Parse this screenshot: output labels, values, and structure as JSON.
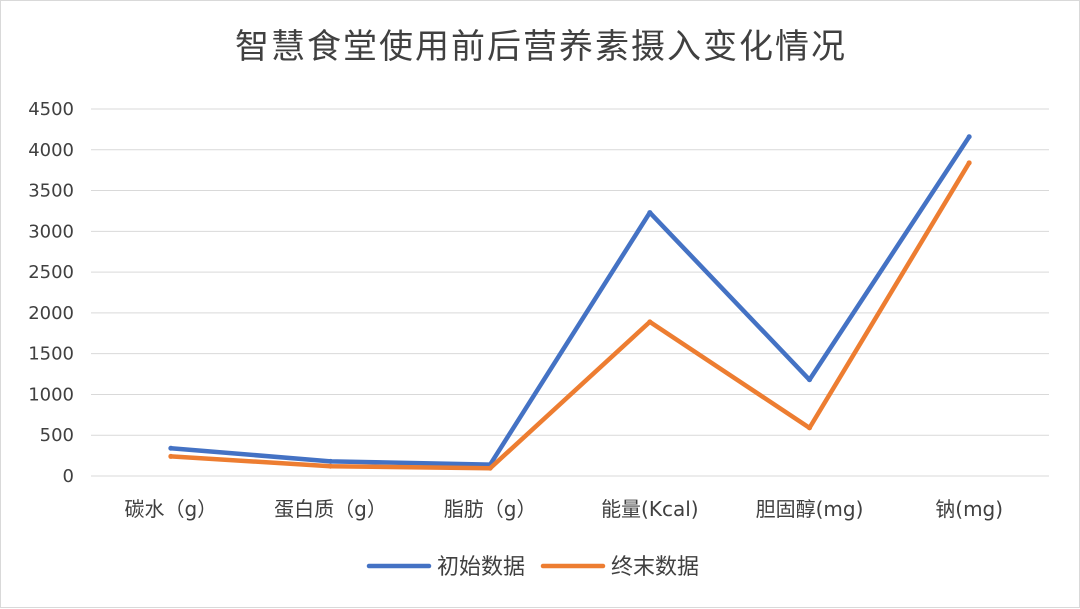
{
  "chart_data": {
    "type": "line",
    "title": "智慧食堂使用前后营养素摄入变化情况",
    "categories": [
      "碳水（g）",
      "蛋白质（g）",
      "脂肪（g）",
      "能量(Kcal)",
      "胆固醇(mg)",
      "钠(mg)"
    ],
    "series": [
      {
        "name": "初始数据",
        "color": "#4472c4",
        "values": [
          340,
          180,
          140,
          3230,
          1180,
          4160
        ]
      },
      {
        "name": "终末数据",
        "color": "#ed7d31",
        "values": [
          240,
          120,
          95,
          1890,
          590,
          3840
        ]
      }
    ],
    "yticks": [
      0,
      500,
      1000,
      1500,
      2000,
      2500,
      3000,
      3500,
      4000,
      4500
    ],
    "ylim": [
      0,
      4500
    ],
    "grid": true,
    "legend_position": "bottom"
  }
}
